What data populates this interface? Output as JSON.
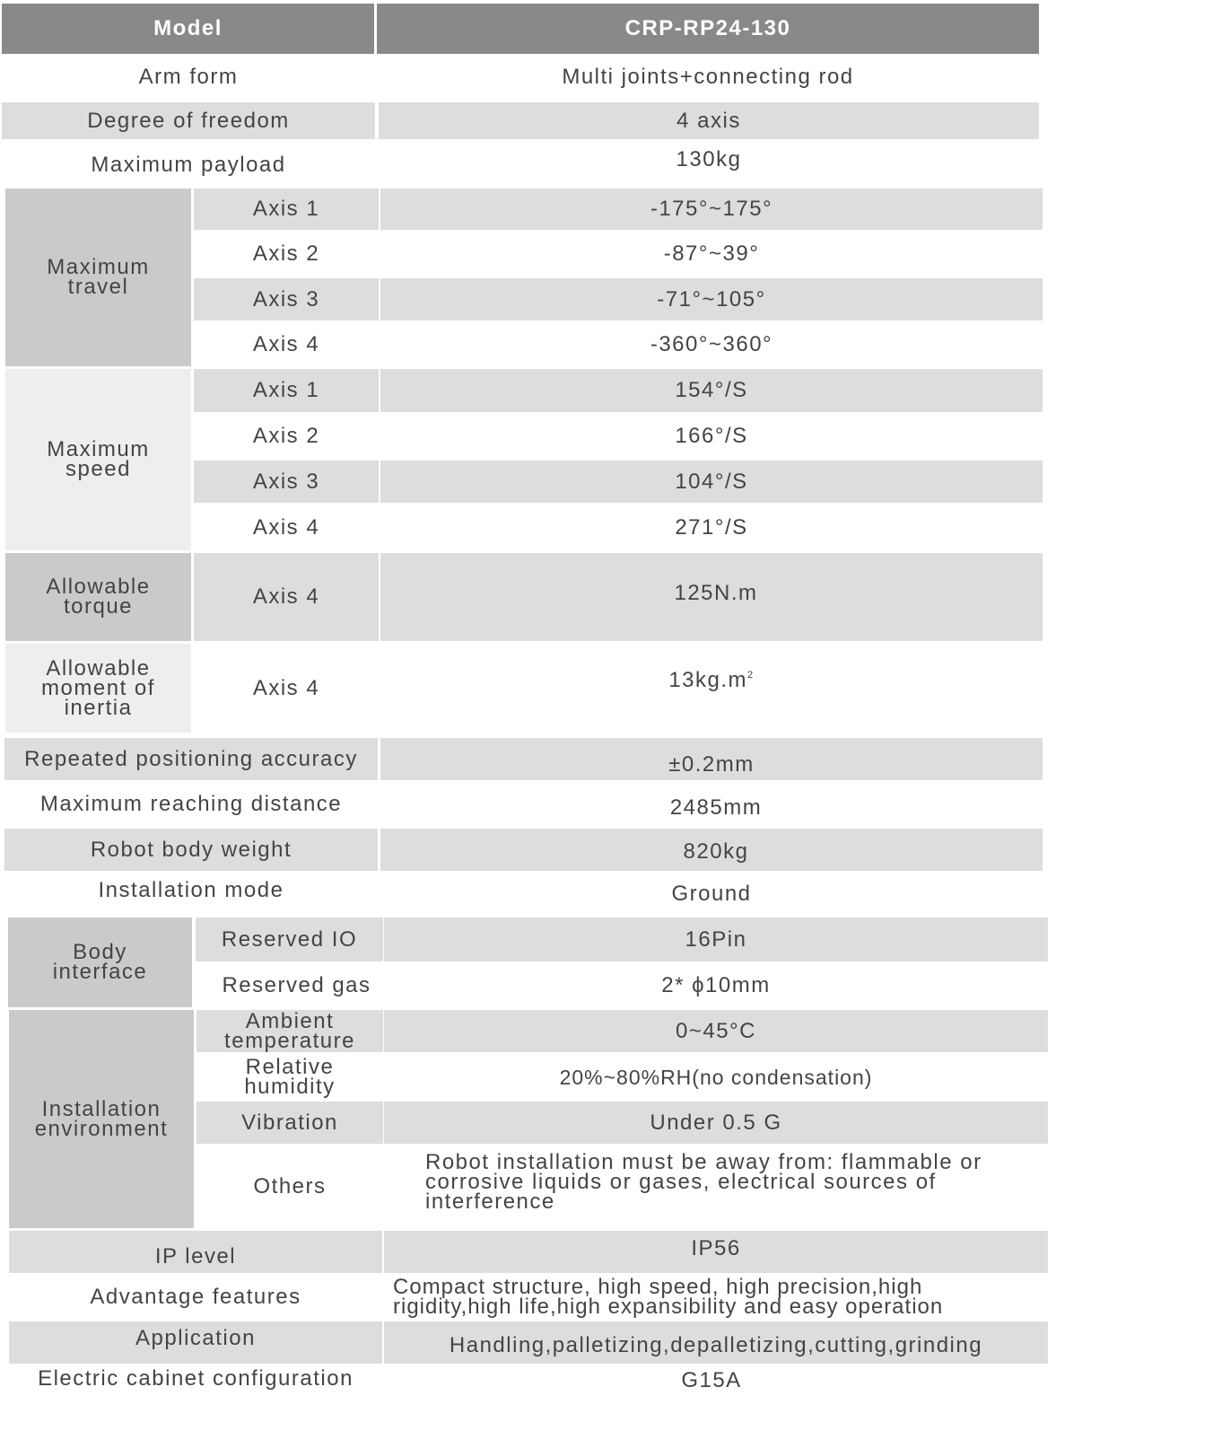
{
  "header": {
    "label": "Model",
    "model": "CRP-RP24-130"
  },
  "arm_form": {
    "label": "Arm form",
    "value": "Multi joints+connecting rod"
  },
  "dof": {
    "label": "Degree of freedom",
    "value": "4 axis"
  },
  "payload": {
    "label": "Maximum payload",
    "value": "130kg"
  },
  "travel": {
    "label": "Maximum travel",
    "rows": [
      {
        "axis": "Axis 1",
        "value": "-175°~175°"
      },
      {
        "axis": "Axis 2",
        "value": "-87°~39°"
      },
      {
        "axis": "Axis 3",
        "value": "-71°~105°"
      },
      {
        "axis": "Axis 4",
        "value": "-360°~360°"
      }
    ]
  },
  "speed": {
    "label": "Maximum speed",
    "rows": [
      {
        "axis": "Axis 1",
        "value": "154°/S"
      },
      {
        "axis": "Axis 2",
        "value": "166°/S"
      },
      {
        "axis": "Axis 3",
        "value": "104°/S"
      },
      {
        "axis": "Axis 4",
        "value": "271°/S"
      }
    ]
  },
  "torque": {
    "label": "Allowable torque",
    "axis": "Axis 4",
    "value": "125N.m"
  },
  "inertia": {
    "label": "Allowable moment of inertia",
    "axis": "Axis 4",
    "value": "13kg.m",
    "sup": "2"
  },
  "accuracy": {
    "label": "Repeated positioning accuracy",
    "value": "±0.2mm"
  },
  "reach": {
    "label": "Maximum reaching distance",
    "value": "2485mm"
  },
  "weight": {
    "label": "Robot body weight",
    "value": "820kg"
  },
  "install_mode": {
    "label": "Installation mode",
    "value": "Ground"
  },
  "body_interface": {
    "label": "Body interface",
    "rows": [
      {
        "item": "Reserved IO",
        "value": "16Pin"
      },
      {
        "item": "Reserved gas",
        "value": "2* ϕ10mm"
      }
    ]
  },
  "environment": {
    "label": "Installation environment",
    "rows": [
      {
        "item": "Ambient temperature",
        "value": "0~45°C"
      },
      {
        "item": "Relative humidity",
        "value": "20%~80%RH(no condensation)"
      },
      {
        "item": "Vibration",
        "value": "Under 0.5 G"
      },
      {
        "item": "Others",
        "value": "Robot installation must be away from: flammable or corrosive liquids or gases, electrical sources of interference"
      }
    ]
  },
  "ip": {
    "label": "IP level",
    "value": "IP56"
  },
  "advantage": {
    "label": "Advantage features",
    "value": "Compact structure, high speed, high precision,high rigidity,high life,high expansibility and easy operation"
  },
  "application": {
    "label": "Application",
    "value": "Handling,palletizing,depalletizing,cutting,grinding"
  },
  "cabinet": {
    "label": "Electric cabinet configuration",
    "value": "G15A"
  }
}
